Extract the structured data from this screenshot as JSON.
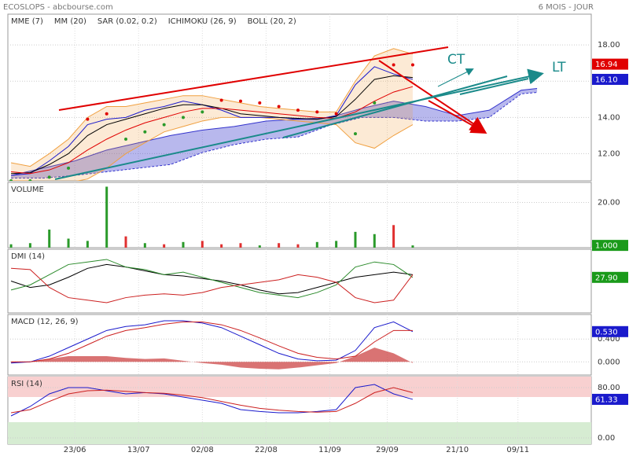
{
  "header": {
    "left": "ECOSLOPS - abcbourse.com",
    "right": "6 MOIS - JOUR"
  },
  "annotations": [
    "CT",
    "LT"
  ],
  "x_axis": {
    "xlim": [
      -21,
      162
    ],
    "xticks": [
      {
        "value": 0,
        "label": "23/06"
      },
      {
        "value": 20,
        "label": "13/07"
      },
      {
        "value": 40,
        "label": "02/08"
      },
      {
        "value": 60,
        "label": "22/08"
      },
      {
        "value": 80,
        "label": "11/09"
      },
      {
        "value": 98,
        "label": "29/09"
      },
      {
        "value": 120,
        "label": "21/10"
      },
      {
        "value": 139,
        "label": "09/11"
      }
    ],
    "x": [
      -20,
      -14,
      -8,
      -2,
      4,
      10,
      16,
      22,
      28,
      34,
      40,
      46,
      52,
      58,
      64,
      70,
      76,
      82,
      88,
      94,
      100,
      106
    ]
  },
  "chart_data": [
    {
      "type": "line",
      "ylim": [
        10.5,
        19.7
      ],
      "yticks": [
        {
          "value": 12,
          "label": "12.00"
        },
        {
          "value": 14,
          "label": "14.00"
        },
        {
          "value": 16,
          "label": "16.00"
        },
        {
          "value": 18,
          "label": "18.00"
        }
      ],
      "series": [
        {
          "type": "line",
          "color": "#1a1acc",
          "values": [
            10.8,
            10.9,
            11.6,
            12.4,
            13.6,
            13.9,
            14.0,
            14.4,
            14.6,
            14.9,
            14.7,
            14.4,
            14.0,
            14.0,
            14.0,
            13.9,
            13.9,
            14.1,
            15.8,
            16.8,
            16.4,
            16.1
          ]
        },
        {
          "type": "line",
          "name": "MME (7)",
          "color": "#000000",
          "values": [
            10.9,
            10.95,
            11.4,
            12.0,
            13.0,
            13.6,
            13.9,
            14.2,
            14.5,
            14.7,
            14.7,
            14.5,
            14.2,
            14.1,
            14.0,
            13.95,
            13.9,
            14.05,
            15.0,
            16.1,
            16.3,
            16.2
          ]
        },
        {
          "type": "line",
          "name": "MM (20)",
          "color": "#e00000",
          "values": [
            11.0,
            10.9,
            11.1,
            11.5,
            12.2,
            12.8,
            13.3,
            13.7,
            14.0,
            14.3,
            14.5,
            14.5,
            14.4,
            14.3,
            14.2,
            14.1,
            14.0,
            13.95,
            14.3,
            14.9,
            15.4,
            15.7
          ]
        },
        {
          "type": "dots",
          "name": "SAR (0.02, 0.2)",
          "color": "#e00000",
          "color_below": "#2a9a2a",
          "values": [
            10.5,
            10.5,
            10.7,
            11.2,
            13.9,
            14.2,
            12.8,
            13.2,
            13.6,
            14.0,
            14.3,
            14.95,
            14.9,
            14.8,
            14.6,
            14.4,
            14.3,
            14.2,
            13.1,
            14.8,
            16.9,
            16.9
          ]
        },
        {
          "type": "area",
          "name": "ICHIMOKU (26, 9)",
          "color": "#3333cc",
          "x": [
            -20,
            -10,
            0,
            10,
            20,
            30,
            40,
            50,
            60,
            70,
            80,
            90,
            100,
            110,
            120,
            130,
            140,
            145
          ],
          "upper": [
            10.8,
            11.2,
            11.6,
            12.2,
            12.6,
            13.0,
            13.3,
            13.5,
            13.8,
            13.9,
            14.0,
            14.5,
            14.9,
            14.6,
            14.1,
            14.4,
            15.5,
            15.6
          ],
          "lower": [
            10.65,
            10.65,
            10.8,
            11.0,
            11.2,
            11.4,
            12.06,
            12.5,
            12.8,
            12.92,
            13.57,
            14.0,
            14.0,
            13.8,
            13.8,
            14.0,
            15.3,
            15.38
          ]
        },
        {
          "type": "band",
          "name": "BOLL (20, 2)",
          "color": "#f0a040",
          "upper": [
            11.5,
            11.3,
            12.0,
            12.8,
            14.0,
            14.6,
            14.6,
            14.8,
            15.0,
            15.2,
            15.2,
            15.0,
            14.8,
            14.6,
            14.5,
            14.4,
            14.3,
            14.3,
            16.0,
            17.4,
            17.8,
            17.5
          ],
          "lower": [
            10.5,
            10.5,
            10.4,
            10.4,
            10.6,
            11.2,
            12.0,
            12.6,
            13.2,
            13.5,
            13.8,
            14.0,
            14.0,
            14.0,
            13.9,
            13.8,
            13.7,
            13.6,
            12.6,
            12.3,
            13.0,
            13.6
          ]
        }
      ],
      "last_values": [
        {
          "value": 16.94,
          "color": "#e00000"
        },
        {
          "value": {
            "value": 16.1,
            "label": "16.10"
          },
          "color": "#1a1acc"
        }
      ]
    },
    {
      "type": "bar",
      "title": "VOLUME",
      "ylim": [
        0,
        28.9
      ],
      "yticks": [
        {
          "value": 20,
          "label": "20.00"
        }
      ],
      "series": [
        {
          "type": "bar",
          "values": [
            1.5,
            2,
            8,
            4,
            3,
            27,
            5,
            2,
            1.5,
            2.5,
            3,
            1.5,
            2,
            1,
            2,
            1.5,
            2.5,
            3,
            7,
            6,
            10,
            1
          ],
          "colors": [
            "#2a9a2a",
            "#2a9a2a",
            "#2a9a2a",
            "#2a9a2a",
            "#2a9a2a",
            "#2a9a2a",
            "#e03030",
            "#2a9a2a",
            "#e03030",
            "#2a9a2a",
            "#e03030",
            "#e03030",
            "#e03030",
            "#2a9a2a",
            "#e03030",
            "#e03030",
            "#2a9a2a",
            "#2a9a2a",
            "#2a9a2a",
            "#2a9a2a",
            "#e03030",
            "#2a9a2a"
          ]
        }
      ],
      "last_values": [
        {
          "value": {
            "value": 1,
            "label": "1.000"
          },
          "color": "#1a9a1a"
        }
      ]
    },
    {
      "type": "line",
      "title": "DMI (14)",
      "ylim": [
        0,
        50
      ],
      "yticks": [],
      "series": [
        {
          "type": "line",
          "color": "#000000",
          "values": [
            25,
            20,
            22,
            28,
            35,
            38,
            36,
            33,
            30,
            29,
            27,
            25,
            22,
            18,
            15,
            16,
            20,
            24,
            28,
            30,
            32,
            30
          ]
        },
        {
          "type": "line",
          "color": "#2a8a2a",
          "values": [
            18,
            22,
            30,
            38,
            40,
            42,
            36,
            34,
            30,
            32,
            28,
            24,
            20,
            16,
            14,
            12,
            16,
            22,
            36,
            40,
            38,
            27.9
          ]
        },
        {
          "type": "line",
          "color": "#cc2020",
          "values": [
            35,
            34,
            20,
            12,
            10,
            8,
            12,
            14,
            15,
            14,
            16,
            20,
            22,
            24,
            26,
            30,
            28,
            24,
            12,
            8,
            10,
            30
          ]
        }
      ],
      "last_values": [
        {
          "value": {
            "value": 27.9,
            "label": "27.90"
          },
          "color": "#1a9a1a"
        }
      ]
    },
    {
      "type": "line",
      "title": "MACD (12, 26, 9)",
      "ylim": [
        -0.23,
        0.83
      ],
      "yticks": [
        {
          "value": 0,
          "label": "0.000"
        },
        {
          "value": 0.4,
          "label": "0.400"
        }
      ],
      "series": [
        {
          "type": "histogram",
          "color": "#cc4444",
          "values": [
            -0.02,
            0,
            0.05,
            0.1,
            0.1,
            0.1,
            0.07,
            0.05,
            0.06,
            0.02,
            -0.02,
            -0.05,
            -0.1,
            -0.12,
            -0.13,
            -0.1,
            -0.06,
            -0.02,
            0.1,
            0.25,
            0.15,
            -0.02
          ]
        },
        {
          "type": "line",
          "color": "#1a1acc",
          "values": [
            -0.02,
            0,
            0.1,
            0.25,
            0.4,
            0.55,
            0.62,
            0.65,
            0.72,
            0.72,
            0.68,
            0.6,
            0.45,
            0.3,
            0.15,
            0.05,
            0.02,
            0.03,
            0.2,
            0.6,
            0.7,
            0.53
          ]
        },
        {
          "type": "line",
          "color": "#cc2020",
          "values": [
            0,
            0,
            0.05,
            0.15,
            0.3,
            0.45,
            0.55,
            0.6,
            0.66,
            0.7,
            0.7,
            0.65,
            0.55,
            0.42,
            0.28,
            0.15,
            0.08,
            0.05,
            0.1,
            0.35,
            0.55,
            0.55
          ]
        }
      ],
      "last_values": [
        {
          "value": {
            "value": 0.53,
            "label": "0.530"
          },
          "color": "#1a1acc"
        }
      ]
    },
    {
      "type": "line",
      "title": "RSI (14)",
      "ylim": [
        -10,
        97.5
      ],
      "yticks": [
        {
          "value": 0,
          "label": "0.00"
        },
        {
          "value": 80,
          "label": "80.00"
        }
      ],
      "zones": [
        {
          "from": 65,
          "to": 97.5,
          "color": "#f8d0d0"
        },
        {
          "from": -10,
          "to": 25,
          "color": "#d6ecd2"
        }
      ],
      "series": [
        {
          "type": "line",
          "color": "#1a1acc",
          "values": [
            35,
            50,
            70,
            80,
            80,
            75,
            70,
            72,
            70,
            65,
            60,
            55,
            45,
            42,
            40,
            40,
            42,
            45,
            80,
            85,
            70,
            61.33
          ]
        },
        {
          "type": "line",
          "color": "#cc2020",
          "values": [
            40,
            45,
            58,
            70,
            75,
            76,
            74,
            72,
            71,
            68,
            64,
            58,
            52,
            47,
            44,
            42,
            41,
            42,
            55,
            72,
            80,
            72
          ]
        }
      ],
      "last_values": [
        {
          "value": 61.33,
          "color": "#1a1acc"
        }
      ]
    }
  ]
}
